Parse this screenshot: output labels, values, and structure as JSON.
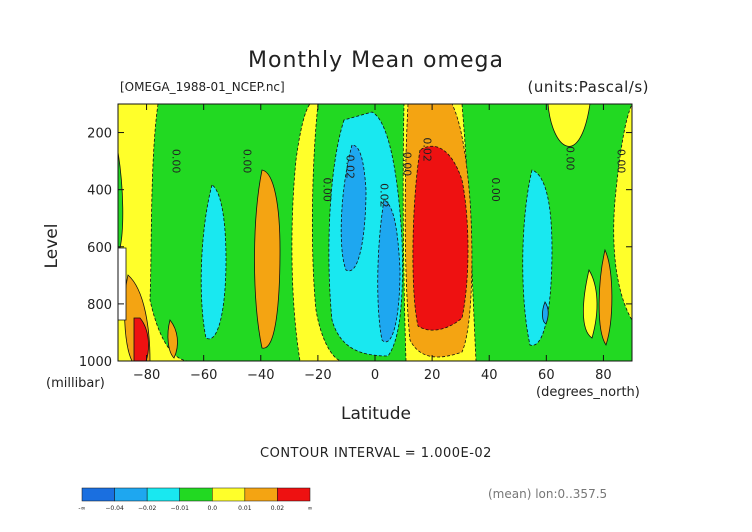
{
  "title": "Monthly Mean omega",
  "file_label": "[OMEGA_1988-01_NCEP.nc]",
  "units_label": "(units:Pascal/s)",
  "contour_interval": "CONTOUR INTERVAL = 1.000E-02",
  "mean_note": "(mean) lon:0..357.5",
  "colors": {
    "neg3": "#1a6fe0",
    "neg2": "#1ea7f0",
    "neg1": "#19e8f0",
    "zero_neg": "#22d922",
    "zero_pos": "#ffff2a",
    "pos1": "#f4a412",
    "pos2": "#ee1111",
    "contour": "#111111"
  },
  "chart_data": {
    "type": "heatmap",
    "title": "Monthly Mean omega",
    "xlabel": "Latitude",
    "x_unit": "(degrees_north)",
    "ylabel": "Level",
    "y_unit": "(millibar)",
    "xlim": [
      -90,
      90
    ],
    "ylim": [
      1000,
      100
    ],
    "x_ticks": [
      -80,
      -60,
      -40,
      -20,
      0,
      20,
      40,
      60,
      80
    ],
    "x_tick_labels": [
      "−80",
      "−60",
      "−40",
      "−20",
      "0",
      "20",
      "40",
      "60",
      "80"
    ],
    "y_ticks": [
      200,
      400,
      600,
      800,
      1000
    ],
    "y_tick_labels": [
      "200",
      "400",
      "600",
      "800",
      "1000"
    ],
    "contour_labels": [
      {
        "text": "0.00",
        "x": -71,
        "y": 300
      },
      {
        "text": "0.00",
        "x": -46,
        "y": 300
      },
      {
        "text": "0.00",
        "x": -18,
        "y": 400
      },
      {
        "text": "0.02",
        "x": -10,
        "y": 320
      },
      {
        "text": "0.02",
        "x": 2,
        "y": 420
      },
      {
        "text": "0.00",
        "x": 10,
        "y": 310
      },
      {
        "text": "0.02",
        "x": 17,
        "y": 260
      },
      {
        "text": "0.00",
        "x": 41,
        "y": 400
      },
      {
        "text": "0.00",
        "x": 67,
        "y": 290
      },
      {
        "text": "0.00",
        "x": 85,
        "y": 300
      }
    ],
    "colorbar": {
      "levels": [
        "-∞",
        "−0.04",
        "−0.02",
        "−0.01",
        "0.0",
        "0.01",
        "0.02",
        "∞"
      ],
      "colors": [
        "#1a6fe0",
        "#1ea7f0",
        "#19e8f0",
        "#22d922",
        "#ffff2a",
        "#f4a412",
        "#ee1111"
      ]
    }
  }
}
